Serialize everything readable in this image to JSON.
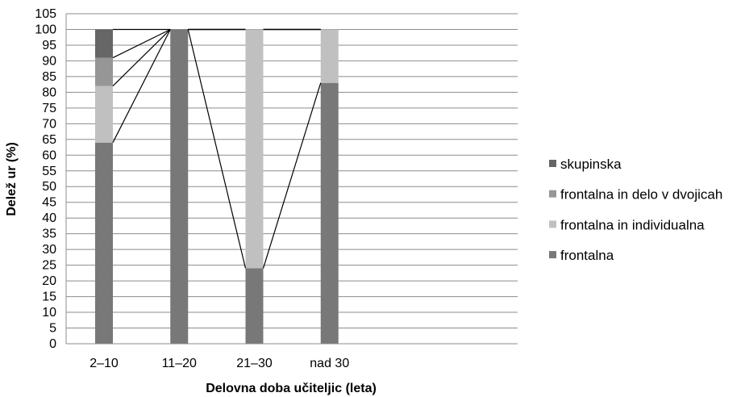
{
  "chart_data": {
    "type": "bar",
    "stacked": true,
    "categories": [
      "2–10",
      "11–20",
      "21–30",
      "nad 30"
    ],
    "series": [
      {
        "name": "frontalna",
        "values": [
          64,
          100,
          24,
          83
        ],
        "color": "#787878"
      },
      {
        "name": "frontalna in individualna",
        "values": [
          18,
          0,
          76,
          17
        ],
        "color": "#c0c0c0"
      },
      {
        "name": "frontalna in delo v dvojicah",
        "values": [
          9,
          0,
          0,
          0
        ],
        "color": "#969696"
      },
      {
        "name": "skupinska",
        "values": [
          9,
          0,
          0,
          0
        ],
        "color": "#666666"
      }
    ],
    "series_lines": true,
    "xlabel": "Delovna doba učiteljic (leta)",
    "ylabel": "Delež ur (%)",
    "ylim": [
      0,
      105
    ],
    "ytick_step": 5,
    "grid": true,
    "legend_position": "right"
  }
}
